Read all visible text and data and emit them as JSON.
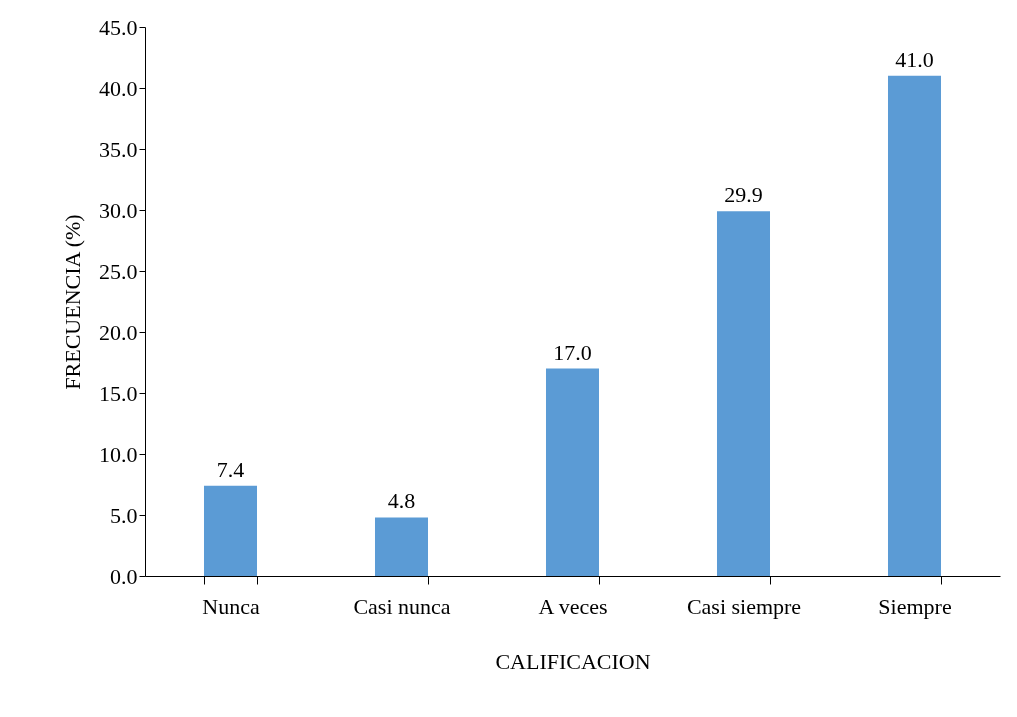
{
  "chart_data": {
    "type": "bar",
    "xlabel": "CALIFICACION",
    "ylabel": "FRECUENCIA (%)",
    "categories": [
      "Nunca",
      "Casi  nunca",
      "A veces",
      "Casi siempre",
      "Siempre"
    ],
    "values": [
      7.4,
      4.8,
      17.0,
      29.9,
      41.0
    ],
    "value_labels": [
      "7.4",
      "4.8",
      "17.0",
      "29.9",
      "41.0"
    ],
    "color": "#5b9bd5",
    "ylim": [
      0,
      45
    ],
    "yticks": [
      {
        "value": 0,
        "label": "0.0"
      },
      {
        "value": 5,
        "label": "5.0"
      },
      {
        "value": 10,
        "label": "10.0"
      },
      {
        "value": 15,
        "label": "15.0"
      },
      {
        "value": 20,
        "label": "20.0"
      },
      {
        "value": 25,
        "label": "25.0"
      },
      {
        "value": 30,
        "label": "30.0"
      },
      {
        "value": 35,
        "label": "35.0"
      },
      {
        "value": 40,
        "label": "40.0"
      },
      {
        "value": 45,
        "label": "45.0"
      }
    ]
  }
}
